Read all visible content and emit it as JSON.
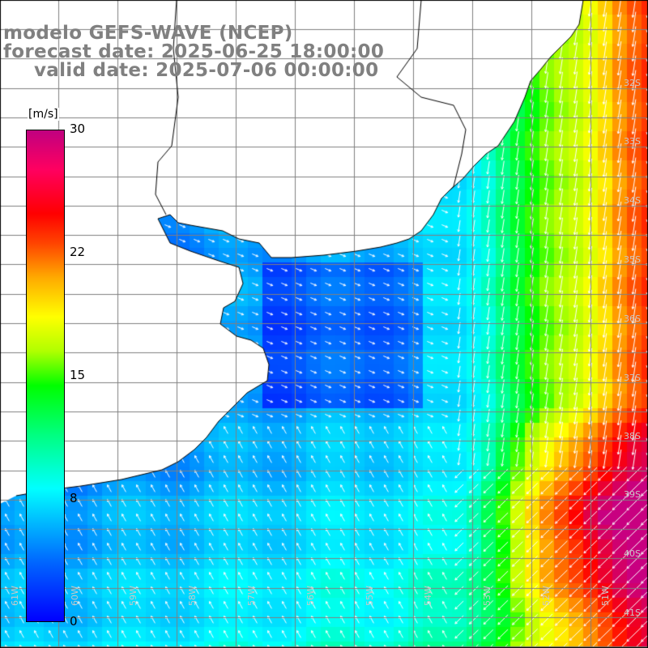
{
  "title": {
    "model": "modelo GEFS-WAVE (NCEP)",
    "forecast": "forecast date: 2025-06-25 18:00:00",
    "valid": "valid date: 2025-07-06 00:00:00"
  },
  "colorbar": {
    "unit": "[m/s]",
    "ticks": [
      "30",
      "22",
      "15",
      "8",
      "0"
    ]
  },
  "lon_labels": [
    "61W",
    "60W",
    "59W",
    "58W",
    "57W",
    "56W",
    "55W",
    "54W",
    "53W",
    "52W",
    "51W"
  ],
  "lat_labels": [
    "32S",
    "33S",
    "34S",
    "35S",
    "36S",
    "37S",
    "38S",
    "39S",
    "40S",
    "41S"
  ],
  "colors": {
    "land": "#ffffff",
    "grid": "#808080",
    "coast": "#000000",
    "title": "#808080"
  }
}
